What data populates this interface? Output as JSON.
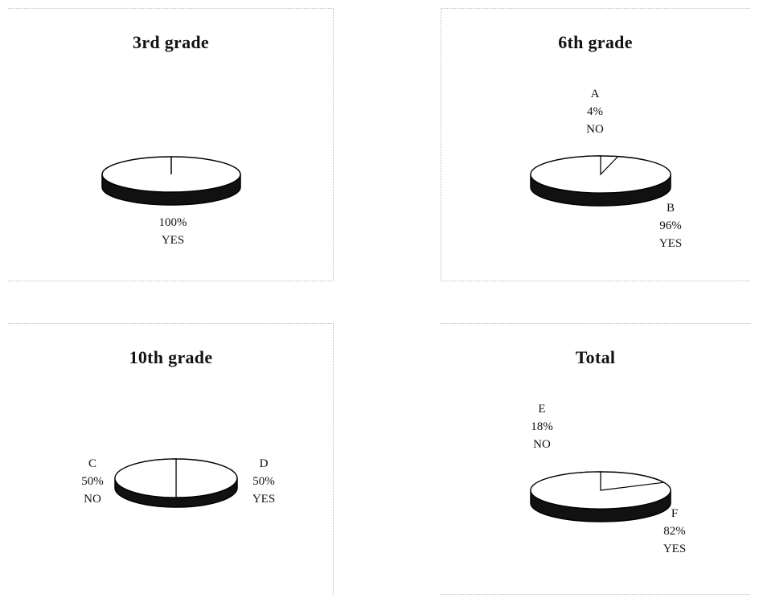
{
  "chart_data": [
    {
      "type": "pie",
      "title": "3rd grade",
      "slices": [
        {
          "letter": "",
          "name": "YES",
          "value": 100,
          "label": "100%"
        }
      ],
      "colors": {
        "fill": "#ffffff",
        "depth": "#111111"
      }
    },
    {
      "type": "pie",
      "title": "6th grade",
      "slices": [
        {
          "letter": "A",
          "name": "NO",
          "value": 4,
          "label": "4%"
        },
        {
          "letter": "B",
          "name": "YES",
          "value": 96,
          "label": "96%"
        }
      ],
      "colors": {
        "fill": "#ffffff",
        "depth": "#111111"
      }
    },
    {
      "type": "pie",
      "title": "10th grade",
      "slices": [
        {
          "letter": "C",
          "name": "NO",
          "value": 50,
          "label": "50%"
        },
        {
          "letter": "D",
          "name": "YES",
          "value": 50,
          "label": "50%"
        }
      ],
      "colors": {
        "fill": "#ffffff",
        "depth": "#111111"
      }
    },
    {
      "type": "pie",
      "title": "Total",
      "slices": [
        {
          "letter": "E",
          "name": "NO",
          "value": 18,
          "label": "18%"
        },
        {
          "letter": "F",
          "name": "YES",
          "value": 82,
          "label": "82%"
        }
      ],
      "colors": {
        "fill": "#ffffff",
        "depth": "#111111"
      }
    }
  ]
}
